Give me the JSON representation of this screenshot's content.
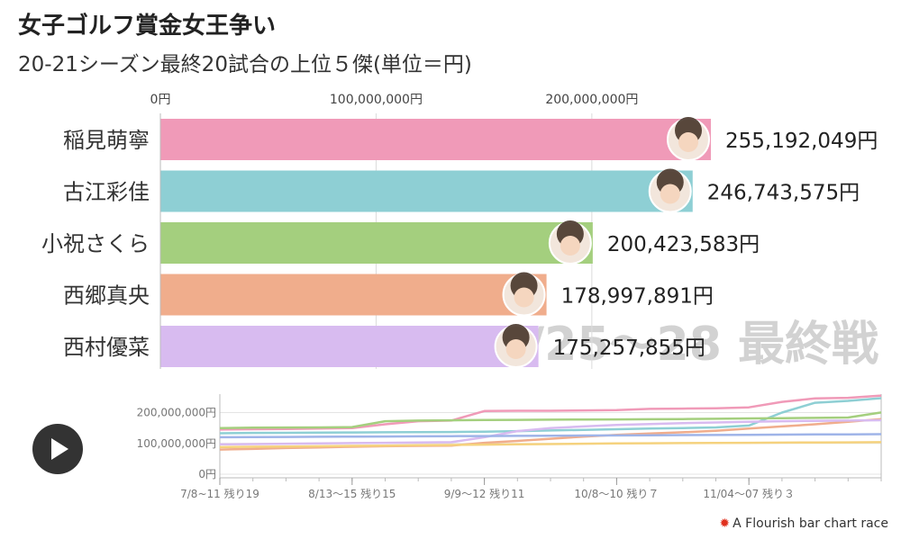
{
  "title": "女子ゴルフ賞金女王争い",
  "subtitle": "20-21シーズン最終20試合の上位５傑(単位＝円)",
  "current_date_label": "11/25～28 最終戦",
  "credit": {
    "text": "A Flourish bar chart race",
    "icon": "flourish-logo-icon"
  },
  "controls": {
    "play_icon": "play-icon"
  },
  "chart_data": [
    {
      "type": "bar",
      "orientation": "horizontal",
      "categories": [
        "稲見萌寧",
        "古江彩佳",
        "小祝さくら",
        "西郷真央",
        "西村優菜"
      ],
      "values": [
        255192049,
        246743575,
        200423583,
        178997891,
        175257855
      ],
      "value_labels": [
        "255,192,049円",
        "246,743,575円",
        "200,423,583円",
        "178,997,891円",
        "175,257,855円"
      ],
      "colors": [
        "#f09ab8",
        "#8ecfd4",
        "#a4cf7e",
        "#f0ad8c",
        "#d8bbf0"
      ],
      "xlim": [
        0,
        255192049
      ],
      "xticks": [
        {
          "value": 0,
          "label": "0円"
        },
        {
          "value": 100000000,
          "label": "100,000,000円"
        },
        {
          "value": 200000000,
          "label": "200,000,000円"
        }
      ],
      "grid": true
    },
    {
      "type": "line",
      "ylim": [
        0,
        260000000
      ],
      "yticks": [
        {
          "value": 0,
          "label": "0円"
        },
        {
          "value": 100000000,
          "label": "100,000,000円"
        },
        {
          "value": 200000000,
          "label": "200,000,000円"
        }
      ],
      "x_tick_labels": [
        "7/8~11 残り19",
        "8/13～15 残り15",
        "9/9～12 残り11",
        "10/8～10 残り７",
        "11/04～07 残り３"
      ],
      "x_steps": 20,
      "x_tick_positions": [
        0,
        4,
        8,
        12,
        16
      ],
      "series": [
        {
          "color": "#f09ab8",
          "values": [
            145000000,
            146000000,
            147000000,
            148000000,
            150000000,
            162000000,
            172000000,
            174000000,
            205000000,
            206000000,
            206000000,
            207000000,
            208000000,
            212000000,
            213000000,
            214000000,
            217000000,
            235000000,
            246000000,
            248000000,
            255192049
          ]
        },
        {
          "color": "#8ecfd4",
          "values": [
            133000000,
            134000000,
            134500000,
            135000000,
            135500000,
            136000000,
            136500000,
            137000000,
            138000000,
            140000000,
            142000000,
            144000000,
            146000000,
            148000000,
            150000000,
            152000000,
            158000000,
            200000000,
            232000000,
            238000000,
            246743575
          ]
        },
        {
          "color": "#a4cf7e",
          "values": [
            150000000,
            151000000,
            151500000,
            152000000,
            153000000,
            172000000,
            174000000,
            175000000,
            176000000,
            176500000,
            177000000,
            177500000,
            178000000,
            178500000,
            179000000,
            180000000,
            181000000,
            182000000,
            183000000,
            184000000,
            200423583
          ]
        },
        {
          "color": "#f0ad8c",
          "values": [
            80000000,
            82000000,
            85000000,
            87000000,
            89000000,
            91000000,
            92000000,
            93000000,
            102000000,
            108000000,
            115000000,
            122000000,
            128000000,
            132000000,
            136000000,
            141000000,
            148000000,
            155000000,
            162000000,
            170000000,
            178997891
          ]
        },
        {
          "color": "#d8bbf0",
          "values": [
            97000000,
            98000000,
            99000000,
            100000000,
            101000000,
            102000000,
            103000000,
            104000000,
            120000000,
            140000000,
            150000000,
            155000000,
            160000000,
            163000000,
            166000000,
            168000000,
            170000000,
            172000000,
            173000000,
            174000000,
            175257855
          ]
        },
        {
          "color": "#9fb4e8",
          "values": [
            120000000,
            120500000,
            121000000,
            121500000,
            122000000,
            122500000,
            123000000,
            123500000,
            124000000,
            124500000,
            125000000,
            125500000,
            126000000,
            126500000,
            127000000,
            127500000,
            128000000,
            128500000,
            129000000,
            129500000,
            130000000
          ]
        },
        {
          "color": "#f5d27e",
          "values": [
            88000000,
            89000000,
            90000000,
            91000000,
            92000000,
            93000000,
            94000000,
            95000000,
            96000000,
            97000000,
            98000000,
            99000000,
            100000000,
            100500000,
            101000000,
            101500000,
            102000000,
            102500000,
            103000000,
            103500000,
            104000000
          ]
        }
      ]
    }
  ]
}
